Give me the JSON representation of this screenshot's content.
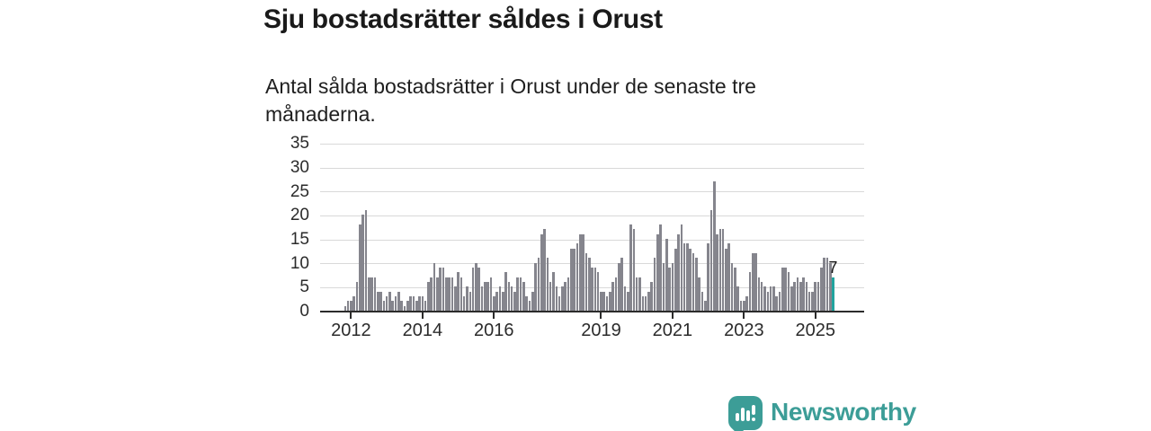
{
  "header": {
    "title": "Sju bostadsrätter såldes i Orust",
    "subtitle": "Antal sålda bostadsrätter i Orust under de senaste tre månaderna."
  },
  "footer": {
    "logo_text": "Newsworthy",
    "logo_color": "#3C9D97"
  },
  "chart_data": {
    "type": "bar",
    "title": "Sju bostadsrätter såldes i Orust",
    "description": "Antal sålda bostadsrätter i Orust under de senaste tre månaderna.",
    "frequency": "monthly",
    "start": "2011-11",
    "end": "2025-07",
    "values": [
      1,
      2,
      2,
      3,
      6,
      18,
      20,
      21,
      7,
      7,
      7,
      4,
      4,
      2,
      3,
      4,
      2,
      3,
      4,
      2,
      1,
      2,
      3,
      3,
      2,
      3,
      3,
      2,
      6,
      7,
      10,
      7,
      9,
      9,
      7,
      7,
      7,
      5,
      8,
      7,
      3,
      5,
      4,
      9,
      10,
      9,
      5,
      6,
      6,
      7,
      3,
      4,
      5,
      4,
      8,
      6,
      5,
      4,
      7,
      7,
      6,
      3,
      2,
      4,
      10,
      11,
      16,
      17,
      11,
      6,
      8,
      5,
      3,
      5,
      6,
      7,
      13,
      13,
      14,
      16,
      16,
      12,
      11,
      9,
      9,
      8,
      4,
      4,
      3,
      4,
      6,
      7,
      10,
      11,
      5,
      4,
      18,
      17,
      7,
      7,
      3,
      3,
      4,
      6,
      11,
      16,
      18,
      10,
      15,
      9,
      10,
      13,
      16,
      18,
      14,
      14,
      13,
      12,
      11,
      7,
      4,
      2,
      14,
      21,
      27,
      16,
      17,
      17,
      13,
      14,
      10,
      9,
      5,
      2,
      2,
      3,
      8,
      12,
      12,
      7,
      6,
      5,
      4,
      5,
      5,
      3,
      4,
      9,
      9,
      8,
      5,
      6,
      7,
      6,
      7,
      6,
      4,
      4,
      6,
      6,
      9,
      11,
      11,
      10,
      7
    ],
    "highlight": {
      "index": 164,
      "value": 7,
      "label": "7",
      "color": "#21A39E"
    },
    "bar_color": "#85858D",
    "grid_color": "#D9D9D9",
    "axis_color": "#2B2B2B",
    "ylim": [
      0,
      35
    ],
    "yticks": [
      0,
      5,
      10,
      15,
      20,
      25,
      30,
      35
    ],
    "xticks": [
      {
        "label": "2012",
        "index": 2
      },
      {
        "label": "2014",
        "index": 26
      },
      {
        "label": "2016",
        "index": 50
      },
      {
        "label": "2019",
        "index": 86
      },
      {
        "label": "2021",
        "index": 110
      },
      {
        "label": "2023",
        "index": 134
      },
      {
        "label": "2025",
        "index": 158
      }
    ],
    "grid": "horizontal",
    "legend": "none"
  }
}
